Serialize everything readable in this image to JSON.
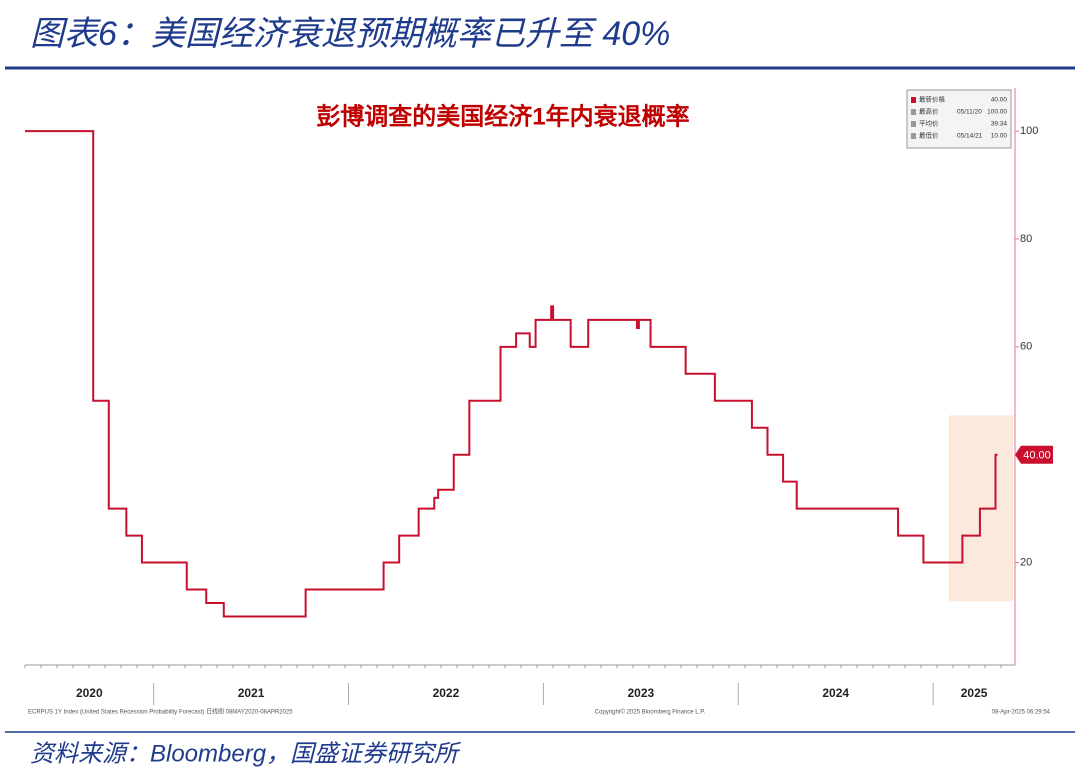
{
  "header": {
    "title": "图表6：美国经济衰退预期概率已升至 40%"
  },
  "chart_data": {
    "type": "line",
    "title": "彭博调查的美国经济1年内衰退概率",
    "x": [
      2020.34,
      2020.69,
      2020.77,
      2020.86,
      2020.94,
      2021.17,
      2021.27,
      2021.36,
      2021.78,
      2022.18,
      2022.26,
      2022.36,
      2022.44,
      2022.46,
      2022.54,
      2022.62,
      2022.78,
      2022.86,
      2022.93,
      2022.96,
      2023.04,
      2023.05,
      2023.14,
      2023.23,
      2023.48,
      2023.49,
      2023.55,
      2023.73,
      2023.88,
      2024.07,
      2024.15,
      2024.23,
      2024.3,
      2024.82,
      2024.95,
      2025.15,
      2025.24,
      2025.32,
      2025.33
    ],
    "values": [
      100,
      50,
      30,
      25,
      20,
      15,
      12.5,
      10,
      15,
      20,
      25,
      30,
      32,
      33.5,
      40,
      50,
      60,
      62.5,
      60,
      65,
      67.5,
      65,
      60,
      65,
      63.5,
      65,
      60,
      55,
      50,
      45,
      40,
      35,
      30,
      25,
      20,
      25,
      30,
      40,
      40
    ],
    "color": "#c8102e",
    "step": true,
    "last_value_label": "40.00",
    "xlim": [
      2020.34,
      2025.42
    ],
    "xticks": [
      {
        "value": 2020.67,
        "label": "2020"
      },
      {
        "value": 2021.5,
        "label": "2021"
      },
      {
        "value": 2022.5,
        "label": "2022"
      },
      {
        "value": 2023.5,
        "label": "2023"
      },
      {
        "value": 2024.5,
        "label": "2024"
      },
      {
        "value": 2025.21,
        "label": "2025"
      }
    ],
    "xseparators": [
      2021,
      2022,
      2023,
      2024,
      2025
    ],
    "ylim": [
      1,
      108
    ],
    "yticks": [
      20,
      40,
      60,
      80,
      100
    ],
    "highlight": {
      "xlim": [
        2025.08,
        2025.41
      ],
      "ylim": [
        12.8,
        47.3
      ],
      "color": "#fbe3d4"
    },
    "stats": [
      {
        "label": "最新价格",
        "value": "40.00"
      },
      {
        "label": "最高价",
        "date": "05/11/20",
        "value": "100.00"
      },
      {
        "label": "平均价",
        "value": "39.34"
      },
      {
        "label": "最低价",
        "date": "05/14/21",
        "value": "10.00"
      }
    ],
    "notes": {
      "left": "ECRPUS 1Y Index (United States Recession Probability Forecast) 日线图 08MAY2020-08APR2025",
      "center": "Copyright© 2025 Bloomberg Finance L.P.",
      "right": "08-Apr-2025 06:29:54"
    }
  },
  "footer": {
    "source": "资料来源：Bloomberg，国盛证券研究所"
  }
}
